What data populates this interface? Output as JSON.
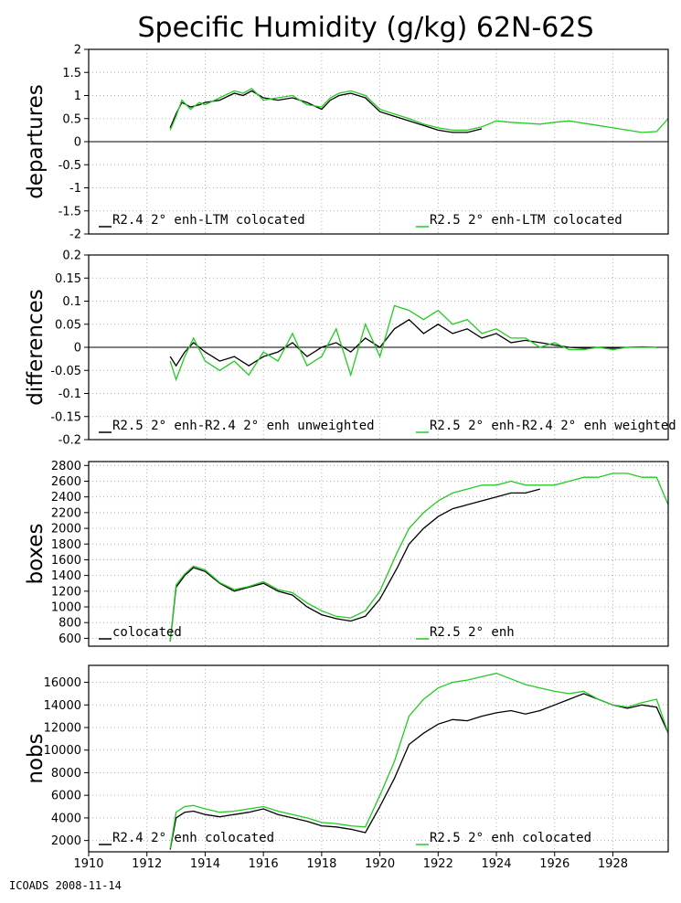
{
  "title": "Specific Humidity (g/kg) 62N-62S",
  "footer": "ICOADS 2008-11-14",
  "colors": {
    "series_a": "#000000",
    "series_b": "#22cc22",
    "grid": "#b0b0b0",
    "frame": "#000000"
  },
  "x_axis": {
    "range": [
      1910,
      1929.9
    ],
    "ticks": [
      1910,
      1912,
      1914,
      1916,
      1918,
      1920,
      1922,
      1924,
      1926,
      1928
    ],
    "tick_labels": [
      "1910",
      "1912",
      "1914",
      "1916",
      "1918",
      "1920",
      "1922",
      "1924",
      "1926",
      "1928"
    ]
  },
  "chart_data": [
    {
      "type": "line",
      "ylabel": "departures",
      "ylim": [
        -2,
        2
      ],
      "yticks": [
        -2,
        -1.5,
        -1,
        -0.5,
        0,
        0.5,
        1,
        1.5,
        2
      ],
      "ytick_labels": [
        "-2",
        "-1.5",
        "-1",
        "-0.5",
        "0",
        "0.5",
        "1",
        "1.5",
        "2"
      ],
      "zero_line": true,
      "grid": true,
      "legend": "bottom",
      "series": [
        {
          "name": "R2.4 2° enh-LTM colocated",
          "x": [
            1912.8,
            1913.0,
            1913.2,
            1913.5,
            1913.8,
            1914.0,
            1914.5,
            1915.0,
            1915.3,
            1915.6,
            1916.0,
            1916.5,
            1917.0,
            1917.5,
            1918.0,
            1918.3,
            1918.6,
            1919.0,
            1919.5,
            1920.0,
            1920.5,
            1921.0,
            1921.5,
            1922.0,
            1922.5,
            1923.0,
            1923.5
          ],
          "values": [
            0.3,
            0.6,
            0.85,
            0.75,
            0.8,
            0.85,
            0.9,
            1.05,
            1.0,
            1.1,
            0.95,
            0.9,
            0.95,
            0.85,
            0.7,
            0.9,
            1.0,
            1.05,
            0.95,
            0.65,
            0.55,
            0.45,
            0.35,
            0.25,
            0.2,
            0.2,
            0.28
          ]
        },
        {
          "name": "R2.5 2° enh-LTM colocated",
          "x": [
            1912.8,
            1913.0,
            1913.2,
            1913.5,
            1913.8,
            1914.0,
            1914.5,
            1915.0,
            1915.3,
            1915.6,
            1916.0,
            1916.5,
            1917.0,
            1917.5,
            1918.0,
            1918.3,
            1918.6,
            1919.0,
            1919.5,
            1920.0,
            1920.5,
            1921.0,
            1921.5,
            1922.0,
            1922.5,
            1923.0,
            1923.5,
            1924.0,
            1924.5,
            1925.0,
            1925.5,
            1926.0,
            1926.5,
            1927.0,
            1927.5,
            1928.0,
            1928.5,
            1929.0,
            1929.5,
            1929.9
          ],
          "values": [
            0.25,
            0.55,
            0.9,
            0.7,
            0.85,
            0.8,
            0.95,
            1.1,
            1.05,
            1.15,
            0.9,
            0.95,
            1.0,
            0.8,
            0.75,
            0.95,
            1.05,
            1.1,
            1.0,
            0.7,
            0.6,
            0.5,
            0.38,
            0.3,
            0.25,
            0.25,
            0.32,
            0.45,
            0.42,
            0.4,
            0.38,
            0.42,
            0.45,
            0.4,
            0.35,
            0.3,
            0.25,
            0.2,
            0.22,
            0.5
          ]
        }
      ]
    },
    {
      "type": "line",
      "ylabel": "differences",
      "ylim": [
        -0.2,
        0.2
      ],
      "yticks": [
        -0.2,
        -0.15,
        -0.1,
        -0.05,
        0,
        0.05,
        0.1,
        0.15,
        0.2
      ],
      "ytick_labels": [
        "-0.2",
        "-0.15",
        "-0.1",
        "-0.05",
        "0",
        "0.05",
        "0.1",
        "0.15",
        "0.2"
      ],
      "zero_line": true,
      "grid": true,
      "legend": "bottom",
      "series": [
        {
          "name": "R2.5 2° enh-R2.4 2° enh unweighted",
          "x": [
            1912.8,
            1913.0,
            1913.3,
            1913.6,
            1914.0,
            1914.5,
            1915.0,
            1915.5,
            1916.0,
            1916.5,
            1917.0,
            1917.5,
            1918.0,
            1918.5,
            1919.0,
            1919.5,
            1920.0,
            1920.5,
            1921.0,
            1921.5,
            1922.0,
            1922.5,
            1923.0,
            1923.5,
            1924.0,
            1924.5,
            1925.0,
            1925.5,
            1926.0,
            1926.5,
            1927.0,
            1927.5,
            1928.0,
            1928.5,
            1929.0,
            1929.5
          ],
          "values": [
            -0.02,
            -0.04,
            -0.01,
            0.01,
            -0.01,
            -0.03,
            -0.02,
            -0.04,
            -0.02,
            -0.01,
            0.01,
            -0.02,
            0.0,
            0.01,
            -0.01,
            0.02,
            0.0,
            0.04,
            0.06,
            0.03,
            0.05,
            0.03,
            0.04,
            0.02,
            0.03,
            0.01,
            0.015,
            0.01,
            0.005,
            0.0,
            -0.002,
            0.0,
            -0.002,
            0.0,
            0.001,
            0.0
          ]
        },
        {
          "name": "R2.5 2° enh-R2.4 2° enh weighted",
          "x": [
            1912.8,
            1913.0,
            1913.3,
            1913.6,
            1914.0,
            1914.5,
            1915.0,
            1915.5,
            1916.0,
            1916.5,
            1917.0,
            1917.5,
            1918.0,
            1918.5,
            1919.0,
            1919.5,
            1920.0,
            1920.5,
            1921.0,
            1921.5,
            1922.0,
            1922.5,
            1923.0,
            1923.5,
            1924.0,
            1924.5,
            1925.0,
            1925.5,
            1926.0,
            1926.5,
            1927.0,
            1927.5,
            1928.0,
            1928.5,
            1929.0,
            1929.5
          ],
          "values": [
            -0.03,
            -0.07,
            -0.02,
            0.02,
            -0.03,
            -0.05,
            -0.03,
            -0.06,
            -0.01,
            -0.03,
            0.03,
            -0.04,
            -0.02,
            0.04,
            -0.06,
            0.05,
            -0.02,
            0.09,
            0.08,
            0.06,
            0.08,
            0.05,
            0.06,
            0.03,
            0.04,
            0.02,
            0.02,
            0.0,
            0.01,
            -0.005,
            -0.005,
            0.0,
            -0.005,
            0.0,
            0.0,
            0.0
          ]
        }
      ]
    },
    {
      "type": "line",
      "ylabel": "boxes",
      "ylim": [
        500,
        2850
      ],
      "yticks": [
        600,
        800,
        1000,
        1200,
        1400,
        1600,
        1800,
        2000,
        2200,
        2400,
        2600,
        2800
      ],
      "ytick_labels": [
        "600",
        "800",
        "1000",
        "1200",
        "1400",
        "1600",
        "1800",
        "2000",
        "2200",
        "2400",
        "2600",
        "2800"
      ],
      "zero_line": false,
      "grid": true,
      "legend": "bottom",
      "series": [
        {
          "name": "colocated",
          "x": [
            1912.8,
            1913.0,
            1913.3,
            1913.6,
            1914.0,
            1914.5,
            1915.0,
            1915.5,
            1916.0,
            1916.5,
            1917.0,
            1917.5,
            1918.0,
            1918.5,
            1919.0,
            1919.5,
            1920.0,
            1920.3,
            1920.6,
            1921.0,
            1921.5,
            1922.0,
            1922.5,
            1923.0,
            1923.5,
            1924.0,
            1924.5,
            1925.0,
            1925.5
          ],
          "values": [
            560,
            1250,
            1400,
            1500,
            1450,
            1300,
            1200,
            1250,
            1300,
            1200,
            1150,
            1000,
            900,
            850,
            820,
            880,
            1100,
            1300,
            1500,
            1800,
            2000,
            2150,
            2250,
            2300,
            2350,
            2400,
            2450,
            2450,
            2500
          ]
        },
        {
          "name": "R2.5 2° enh",
          "x": [
            1912.8,
            1913.0,
            1913.3,
            1913.6,
            1914.0,
            1914.5,
            1915.0,
            1915.5,
            1916.0,
            1916.5,
            1917.0,
            1917.5,
            1918.0,
            1918.5,
            1919.0,
            1919.5,
            1920.0,
            1920.3,
            1920.6,
            1921.0,
            1921.5,
            1922.0,
            1922.5,
            1923.0,
            1923.5,
            1924.0,
            1924.5,
            1925.0,
            1925.5,
            1926.0,
            1926.5,
            1927.0,
            1927.5,
            1928.0,
            1928.5,
            1929.0,
            1929.5,
            1929.9
          ],
          "values": [
            560,
            1280,
            1420,
            1520,
            1470,
            1310,
            1220,
            1260,
            1320,
            1220,
            1180,
            1050,
            950,
            880,
            860,
            950,
            1200,
            1450,
            1700,
            2000,
            2200,
            2350,
            2450,
            2500,
            2550,
            2550,
            2600,
            2550,
            2550,
            2550,
            2600,
            2650,
            2650,
            2700,
            2700,
            2650,
            2650,
            2300
          ]
        }
      ]
    },
    {
      "type": "line",
      "ylabel": "nobs",
      "ylim": [
        1000,
        17500
      ],
      "yticks": [
        2000,
        4000,
        6000,
        8000,
        10000,
        12000,
        14000,
        16000
      ],
      "ytick_labels": [
        "2000",
        "4000",
        "6000",
        "8000",
        "10000",
        "12000",
        "14000",
        "16000"
      ],
      "zero_line": false,
      "grid": true,
      "legend": "bottom",
      "series": [
        {
          "name": "R2.4 2° enh colocated",
          "x": [
            1912.8,
            1913.0,
            1913.3,
            1913.6,
            1914.0,
            1914.5,
            1915.0,
            1915.5,
            1916.0,
            1916.5,
            1917.0,
            1917.5,
            1918.0,
            1918.5,
            1919.0,
            1919.5,
            1920.0,
            1920.5,
            1921.0,
            1921.5,
            1922.0,
            1922.5,
            1923.0,
            1923.5,
            1924.0,
            1924.5,
            1925.0,
            1925.5,
            1926.0,
            1926.5,
            1927.0,
            1927.5,
            1928.0,
            1928.5,
            1929.0,
            1929.5,
            1929.9
          ],
          "values": [
            1200,
            4000,
            4500,
            4600,
            4300,
            4100,
            4300,
            4500,
            4800,
            4300,
            4000,
            3700,
            3300,
            3200,
            3000,
            2700,
            5000,
            7500,
            10500,
            11500,
            12300,
            12700,
            12600,
            13000,
            13300,
            13500,
            13200,
            13500,
            14000,
            14500,
            15000,
            14500,
            14000,
            13700,
            14000,
            13800,
            11500
          ]
        },
        {
          "name": "R2.5 2° enh colocated",
          "x": [
            1912.8,
            1913.0,
            1913.3,
            1913.6,
            1914.0,
            1914.5,
            1915.0,
            1915.5,
            1916.0,
            1916.5,
            1917.0,
            1917.5,
            1918.0,
            1918.5,
            1919.0,
            1919.5,
            1920.0,
            1920.5,
            1921.0,
            1921.5,
            1922.0,
            1922.5,
            1923.0,
            1923.5,
            1924.0,
            1924.5,
            1925.0,
            1925.5,
            1926.0,
            1926.5,
            1927.0,
            1927.5,
            1928.0,
            1928.5,
            1929.0,
            1929.5,
            1929.9
          ],
          "values": [
            1300,
            4500,
            5000,
            5100,
            4800,
            4500,
            4600,
            4800,
            5000,
            4600,
            4300,
            4000,
            3600,
            3500,
            3300,
            3200,
            6000,
            9000,
            13000,
            14500,
            15500,
            16000,
            16200,
            16500,
            16800,
            16300,
            15800,
            15500,
            15200,
            15000,
            15200,
            14500,
            14000,
            13800,
            14200,
            14500,
            11500
          ]
        }
      ]
    }
  ]
}
